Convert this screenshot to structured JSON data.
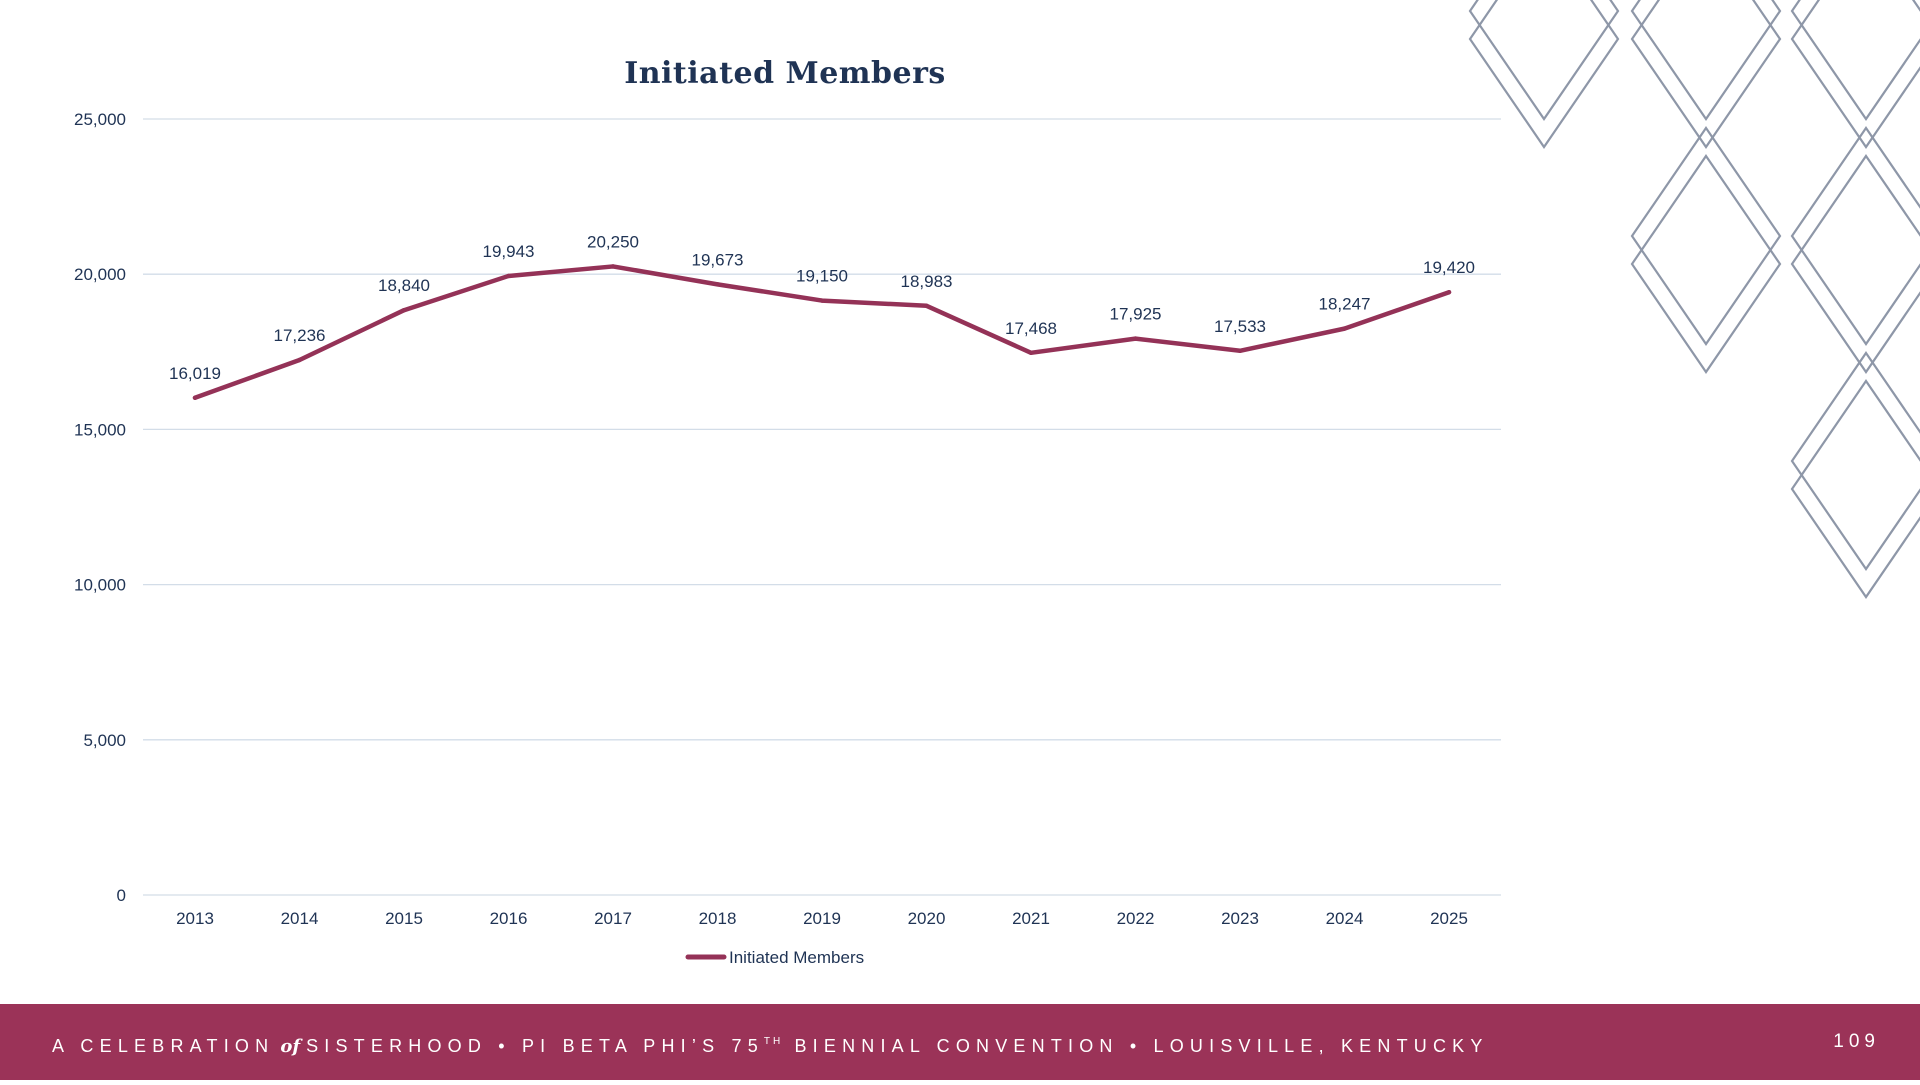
{
  "chart_data": {
    "type": "line",
    "title": "Initiated Members",
    "xlabel": "",
    "ylabel": "",
    "categories": [
      "2013",
      "2014",
      "2015",
      "2016",
      "2017",
      "2018",
      "2019",
      "2020",
      "2021",
      "2022",
      "2023",
      "2024",
      "2025"
    ],
    "series": [
      {
        "name": "Initiated Members",
        "values": [
          16019,
          17236,
          18840,
          19943,
          20250,
          19673,
          19150,
          18983,
          17468,
          17925,
          17533,
          18247,
          19420
        ],
        "labels": [
          "16,019",
          "17,236",
          "18,840",
          "19,943",
          "20,250",
          "19,673",
          "19,150",
          "18,983",
          "17,468",
          "17,925",
          "17,533",
          "18,247",
          "19,420"
        ],
        "color": "#943257"
      }
    ],
    "ylim": [
      0,
      25000
    ],
    "yticks": [
      0,
      5000,
      10000,
      15000,
      20000,
      25000
    ],
    "ytick_labels": [
      "0",
      "5,000",
      "10,000",
      "15,000",
      "20,000",
      "25,000"
    ],
    "grid": true,
    "legend": "bottom"
  },
  "footer": {
    "part1": "A CELEBRATION",
    "of": "of",
    "part2": "SISTERHOOD • PI BETA PHI’S 75",
    "sup": "TH",
    "part3": "BIENNIAL CONVENTION • LOUISVILLE, KENTUCKY",
    "page_number": "109",
    "color": "#9b3358"
  },
  "colors": {
    "title": "#1f3354",
    "text": "#1f3354",
    "grid": "#d3dde8",
    "decoration": "#8e97a8"
  }
}
